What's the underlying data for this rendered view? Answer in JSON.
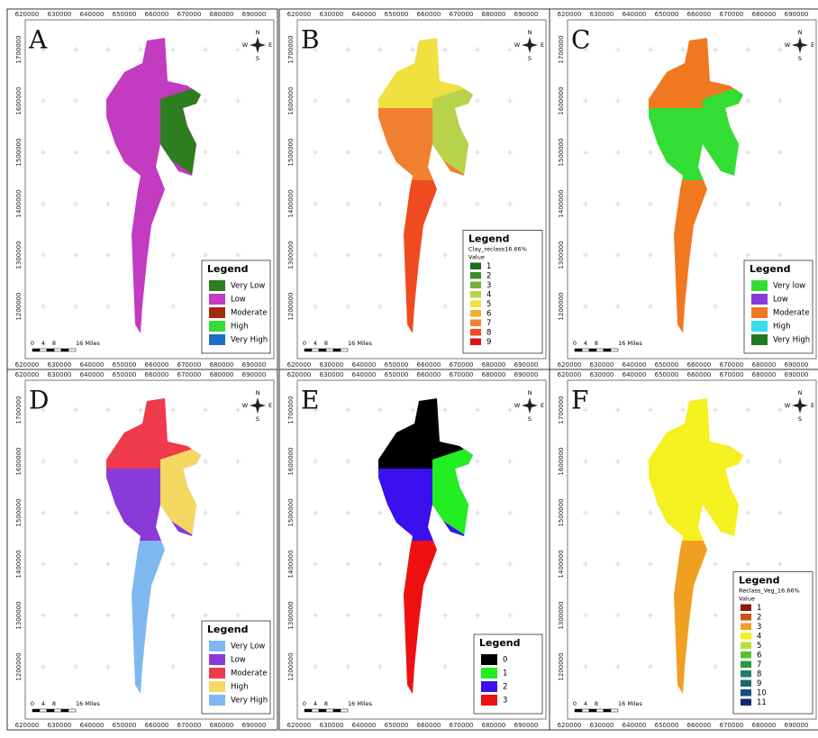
{
  "axes": {
    "xticks": [
      620000,
      630000,
      640000,
      650000,
      660000,
      670000,
      680000,
      690000
    ],
    "yticks": [
      1700000,
      1600000,
      1500000,
      1400000,
      1300000,
      1200000
    ]
  },
  "compass": {
    "n": "N",
    "e": "E",
    "s": "S",
    "w": "W"
  },
  "scale_bar": {
    "labels": [
      "0",
      "4",
      "8",
      "16 Miles"
    ]
  },
  "panels": [
    {
      "letter": "A",
      "legend": {
        "title": "Legend",
        "items": [
          {
            "label": "Very Low",
            "color": "#2e7d1f"
          },
          {
            "label": "Low",
            "color": "#c23bc0"
          },
          {
            "label": "Moderate",
            "color": "#a32a0c"
          },
          {
            "label": "High",
            "color": "#36dd36"
          },
          {
            "label": "Very High",
            "color": "#1a6fc4"
          }
        ]
      }
    },
    {
      "letter": "B",
      "legend": {
        "title": "Legend",
        "layer": "Clay_reclass16.66%",
        "field": "Value",
        "items": [
          {
            "label": "1",
            "color": "#1e6b1e"
          },
          {
            "label": "2",
            "color": "#3c8c28"
          },
          {
            "label": "3",
            "color": "#7ab03a"
          },
          {
            "label": "4",
            "color": "#b8d24a"
          },
          {
            "label": "5",
            "color": "#f0e040"
          },
          {
            "label": "6",
            "color": "#f0b030"
          },
          {
            "label": "7",
            "color": "#f08030"
          },
          {
            "label": "8",
            "color": "#f04a20"
          },
          {
            "label": "9",
            "color": "#e01010"
          }
        ]
      }
    },
    {
      "letter": "C",
      "legend": {
        "title": "Legend",
        "items": [
          {
            "label": "Very low",
            "color": "#33dd33"
          },
          {
            "label": "Low",
            "color": "#8a3ad8"
          },
          {
            "label": "Moderate",
            "color": "#f07820"
          },
          {
            "label": "High",
            "color": "#33ddee"
          },
          {
            "label": "Very High",
            "color": "#1e7a1e"
          }
        ]
      }
    },
    {
      "letter": "D",
      "legend": {
        "title": "Legend",
        "items": [
          {
            "label": "Very Low",
            "color": "#7fb8ee"
          },
          {
            "label": "Low",
            "color": "#8a3ad8"
          },
          {
            "label": "Moderate",
            "color": "#ee3a4a"
          },
          {
            "label": "High",
            "color": "#f5d860"
          },
          {
            "label": "Very High",
            "color": "#7fb8ee"
          }
        ]
      }
    },
    {
      "letter": "E",
      "legend": {
        "title": "Legend",
        "items": [
          {
            "label": "0",
            "color": "#000000"
          },
          {
            "label": "1",
            "color": "#22ee22"
          },
          {
            "label": "2",
            "color": "#3a10ee"
          },
          {
            "label": "3",
            "color": "#ee1010"
          }
        ]
      }
    },
    {
      "letter": "F",
      "legend": {
        "title": "Legend",
        "layer": "Reclass_Veg_16.66%",
        "field": "Value",
        "items": [
          {
            "label": "1",
            "color": "#8b1a10"
          },
          {
            "label": "2",
            "color": "#d2501a"
          },
          {
            "label": "3",
            "color": "#f0a020"
          },
          {
            "label": "4",
            "color": "#f5f020"
          },
          {
            "label": "5",
            "color": "#b8e030"
          },
          {
            "label": "6",
            "color": "#58c030"
          },
          {
            "label": "7",
            "color": "#2a9a40"
          },
          {
            "label": "8",
            "color": "#1e8060"
          },
          {
            "label": "9",
            "color": "#1a6a70"
          },
          {
            "label": "10",
            "color": "#1a4a80"
          },
          {
            "label": "11",
            "color": "#102a6a"
          }
        ]
      }
    }
  ]
}
